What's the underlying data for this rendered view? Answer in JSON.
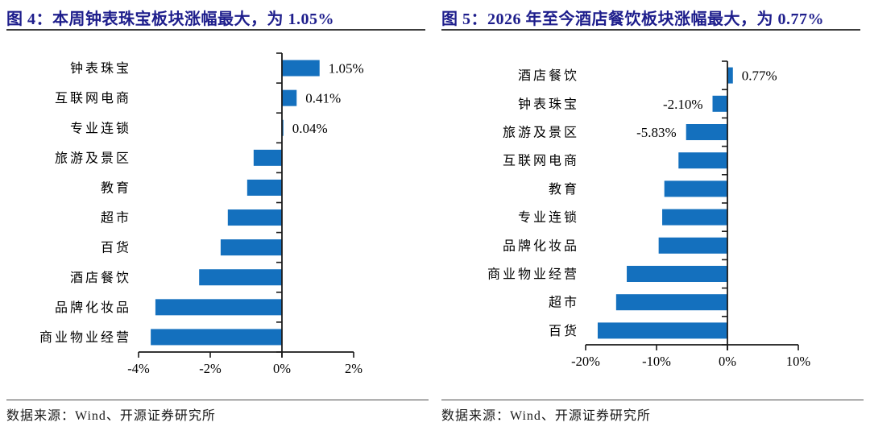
{
  "page": {
    "background": "#ffffff"
  },
  "colors": {
    "bar": "#1470be",
    "title": "#1e1e8c",
    "axis": "#1a1a1a",
    "text": "#000000",
    "title_rule": "#3c3c3c",
    "footer_rule": "#4a4a4a"
  },
  "chart_data": [
    {
      "type": "bar",
      "orientation": "horizontal",
      "title": "图 4：本周钟表珠宝板块涨幅最大，为 1.05%",
      "source": "数据来源：Wind、开源证券研究所",
      "categories": [
        "钟表珠宝",
        "互联网电商",
        "专业连锁",
        "旅游及景区",
        "教育",
        "超市",
        "百货",
        "酒店餐饮",
        "品牌化妆品",
        "商业物业经营"
      ],
      "values": [
        1.05,
        0.41,
        0.04,
        -0.79,
        -0.97,
        -1.51,
        -1.71,
        -2.31,
        -3.53,
        -3.66
      ],
      "data_labels": [
        "1.05%",
        "0.41%",
        "0.04%",
        null,
        null,
        null,
        null,
        null,
        null,
        null
      ],
      "xlim": [
        -4,
        2
      ],
      "xticks": [
        {
          "value": -4,
          "label": "-4%"
        },
        {
          "value": -2,
          "label": "-2%"
        },
        {
          "value": 0,
          "label": "0%"
        },
        {
          "value": 2,
          "label": "2%"
        }
      ],
      "grid": false,
      "legend": false,
      "bar_color": "#1470be"
    },
    {
      "type": "bar",
      "orientation": "horizontal",
      "title": "图 5：2026 年至今酒店餐饮板块涨幅最大，为 0.77%",
      "source": "数据来源：Wind、开源证券研究所",
      "categories": [
        "酒店餐饮",
        "钟表珠宝",
        "旅游及景区",
        "互联网电商",
        "教育",
        "专业连锁",
        "品牌化妆品",
        "商业物业经营",
        "超市",
        "百货"
      ],
      "values": [
        0.77,
        -2.1,
        -5.83,
        -6.9,
        -8.9,
        -9.2,
        -9.7,
        -14.2,
        -15.7,
        -18.3
      ],
      "data_labels": [
        "0.77%",
        "-2.10%",
        "-5.83%",
        null,
        null,
        null,
        null,
        null,
        null,
        null
      ],
      "xlim": [
        -20,
        10
      ],
      "xticks": [
        {
          "value": -20,
          "label": "-20%"
        },
        {
          "value": -10,
          "label": "-10%"
        },
        {
          "value": 0,
          "label": "0%"
        },
        {
          "value": 10,
          "label": "10%"
        }
      ],
      "grid": false,
      "legend": false,
      "bar_color": "#1470be"
    }
  ]
}
